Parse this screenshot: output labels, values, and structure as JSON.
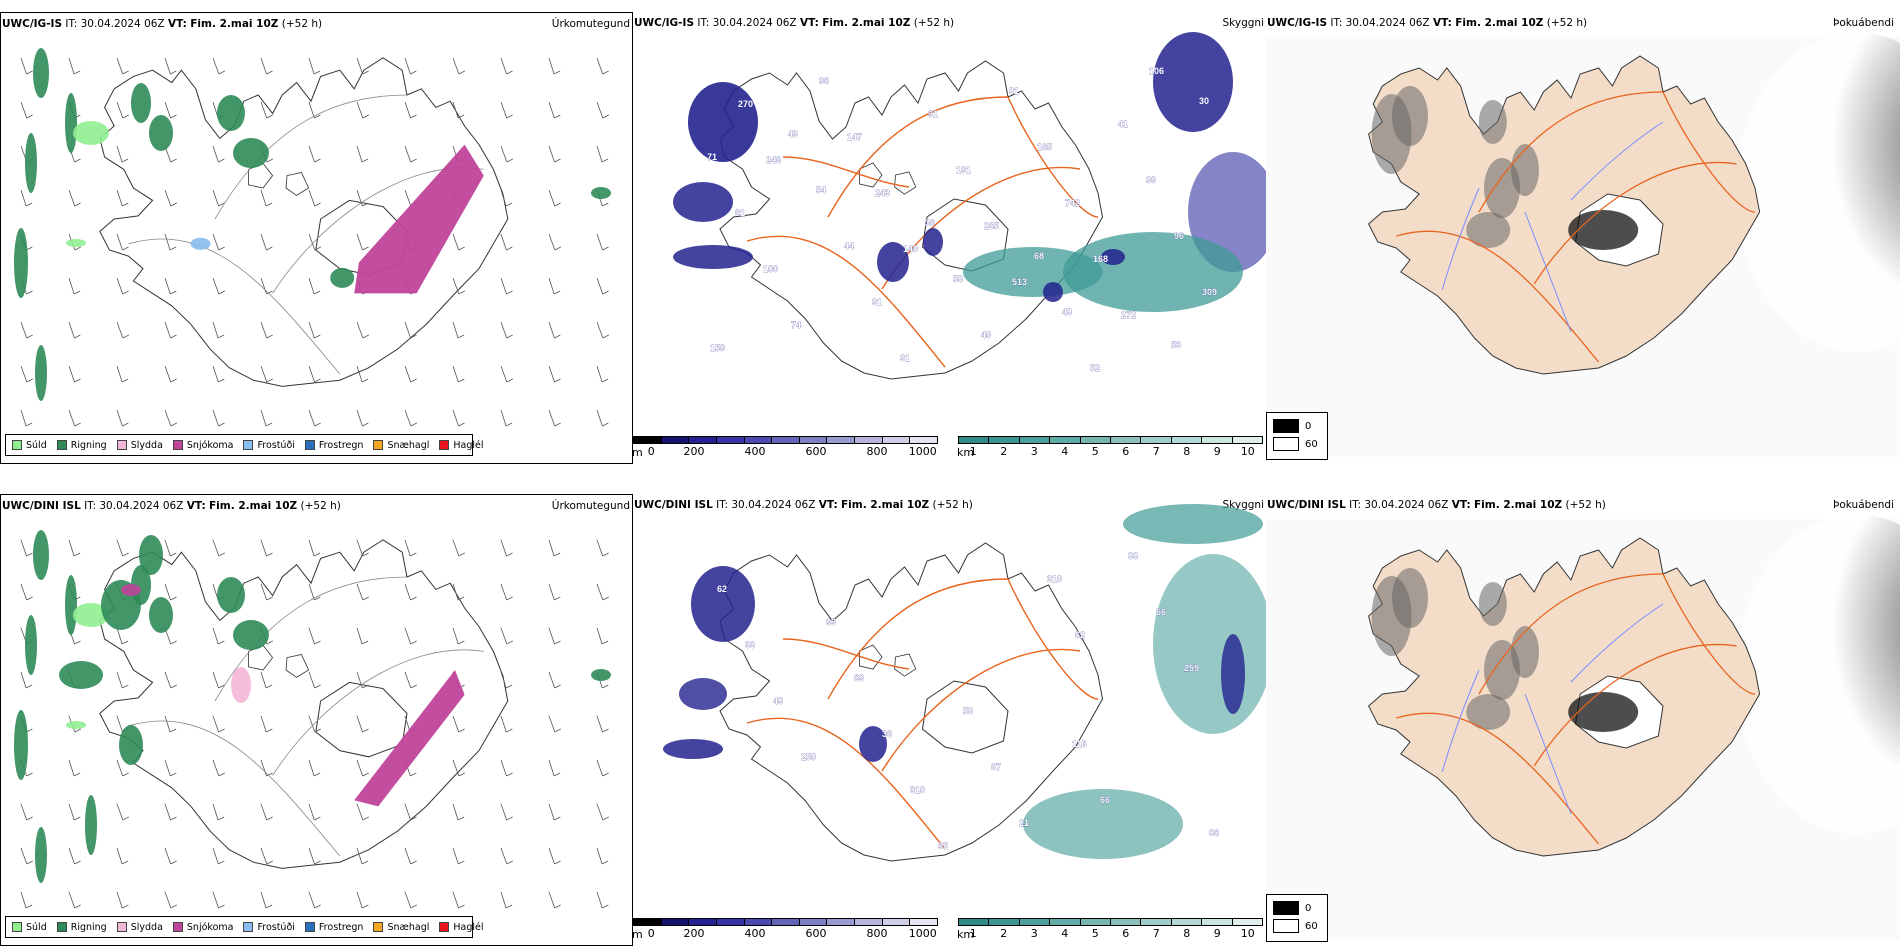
{
  "rows": [
    {
      "header": {
        "model": "UWC/IG-IS",
        "it_label": "IT:",
        "it_value": "30.04.2024 06Z",
        "vt_label": "VT:",
        "vt_value": "Fim. 2.mai 10Z",
        "lead": "(+52 h)"
      },
      "params": {
        "precip": "Úrkomutegund",
        "vis": "Skyggni",
        "fog": "Þokuábendi"
      },
      "vis_labels": [
        "68",
        "53",
        "43",
        "36",
        "48",
        "30",
        "54",
        "58",
        "52",
        "71",
        "44",
        "40",
        "41",
        "61",
        "91",
        "81",
        "99",
        "100",
        "91",
        "165",
        "96",
        "74",
        "91",
        "742",
        "309",
        "96",
        "191",
        "168",
        "159",
        "147",
        "265",
        "272",
        "270",
        "243",
        "513",
        "106",
        "246",
        "140"
      ]
    },
    {
      "header": {
        "model": "UWC/DINI ISL",
        "it_label": "IT:",
        "it_value": "30.04.2024 06Z",
        "vt_label": "VT:",
        "vt_value": "Fim. 2.mai 10Z",
        "lead": "(+52 h)"
      },
      "params": {
        "precip": "Úrkomutegund",
        "vis": "Skyggni",
        "fog": "Þokuábendi"
      },
      "vis_labels": [
        "116",
        "86",
        "99",
        "58",
        "66",
        "62",
        "69",
        "67",
        "88",
        "33",
        "36",
        "21",
        "66",
        "48",
        "310",
        "310",
        "259",
        "250",
        "95",
        "62"
      ]
    }
  ],
  "precip_legend": [
    {
      "label": "Súld",
      "color": "#90ee90"
    },
    {
      "label": "Rigning",
      "color": "#2e8b57"
    },
    {
      "label": "Slydda",
      "color": "#f4b6d6"
    },
    {
      "label": "Snjókoma",
      "color": "#c0449a"
    },
    {
      "label": "Frostúði",
      "color": "#87bdf0"
    },
    {
      "label": "Frostregn",
      "color": "#2a6fbd"
    },
    {
      "label": "Snæhagl",
      "color": "#f5a623"
    },
    {
      "label": "Haglél",
      "color": "#e8141b"
    }
  ],
  "height_bar": {
    "unit": "m",
    "ticks": [
      "0",
      "200",
      "400",
      "600",
      "800",
      "1000"
    ],
    "colors": [
      "#000000",
      "#14146e",
      "#23238f",
      "#3535a6",
      "#4a4aae",
      "#6565b8",
      "#7f7fc3",
      "#9a9ad0",
      "#b5b5dd",
      "#cfcfe8",
      "#e4e4f3"
    ]
  },
  "dist_bar": {
    "unit": "km",
    "ticks": [
      "1",
      "2",
      "3",
      "4",
      "5",
      "6",
      "7",
      "8",
      "9",
      "10"
    ],
    "colors": [
      "#2f8c86",
      "#3e9690",
      "#4ea09a",
      "#61aba6",
      "#75b6b1",
      "#8ac1bd",
      "#a0cdc9",
      "#b6d8d5",
      "#cbe3e1",
      "#e0eeed"
    ]
  },
  "fog_legend": [
    {
      "value": "0",
      "color": "#000000"
    },
    {
      "value": "60",
      "color": "#ffffff"
    }
  ],
  "colors": {
    "island_fill": "#f3ddc9",
    "roads": "#e8641e",
    "rivers": "#7a8cff",
    "outline": "#333333"
  }
}
